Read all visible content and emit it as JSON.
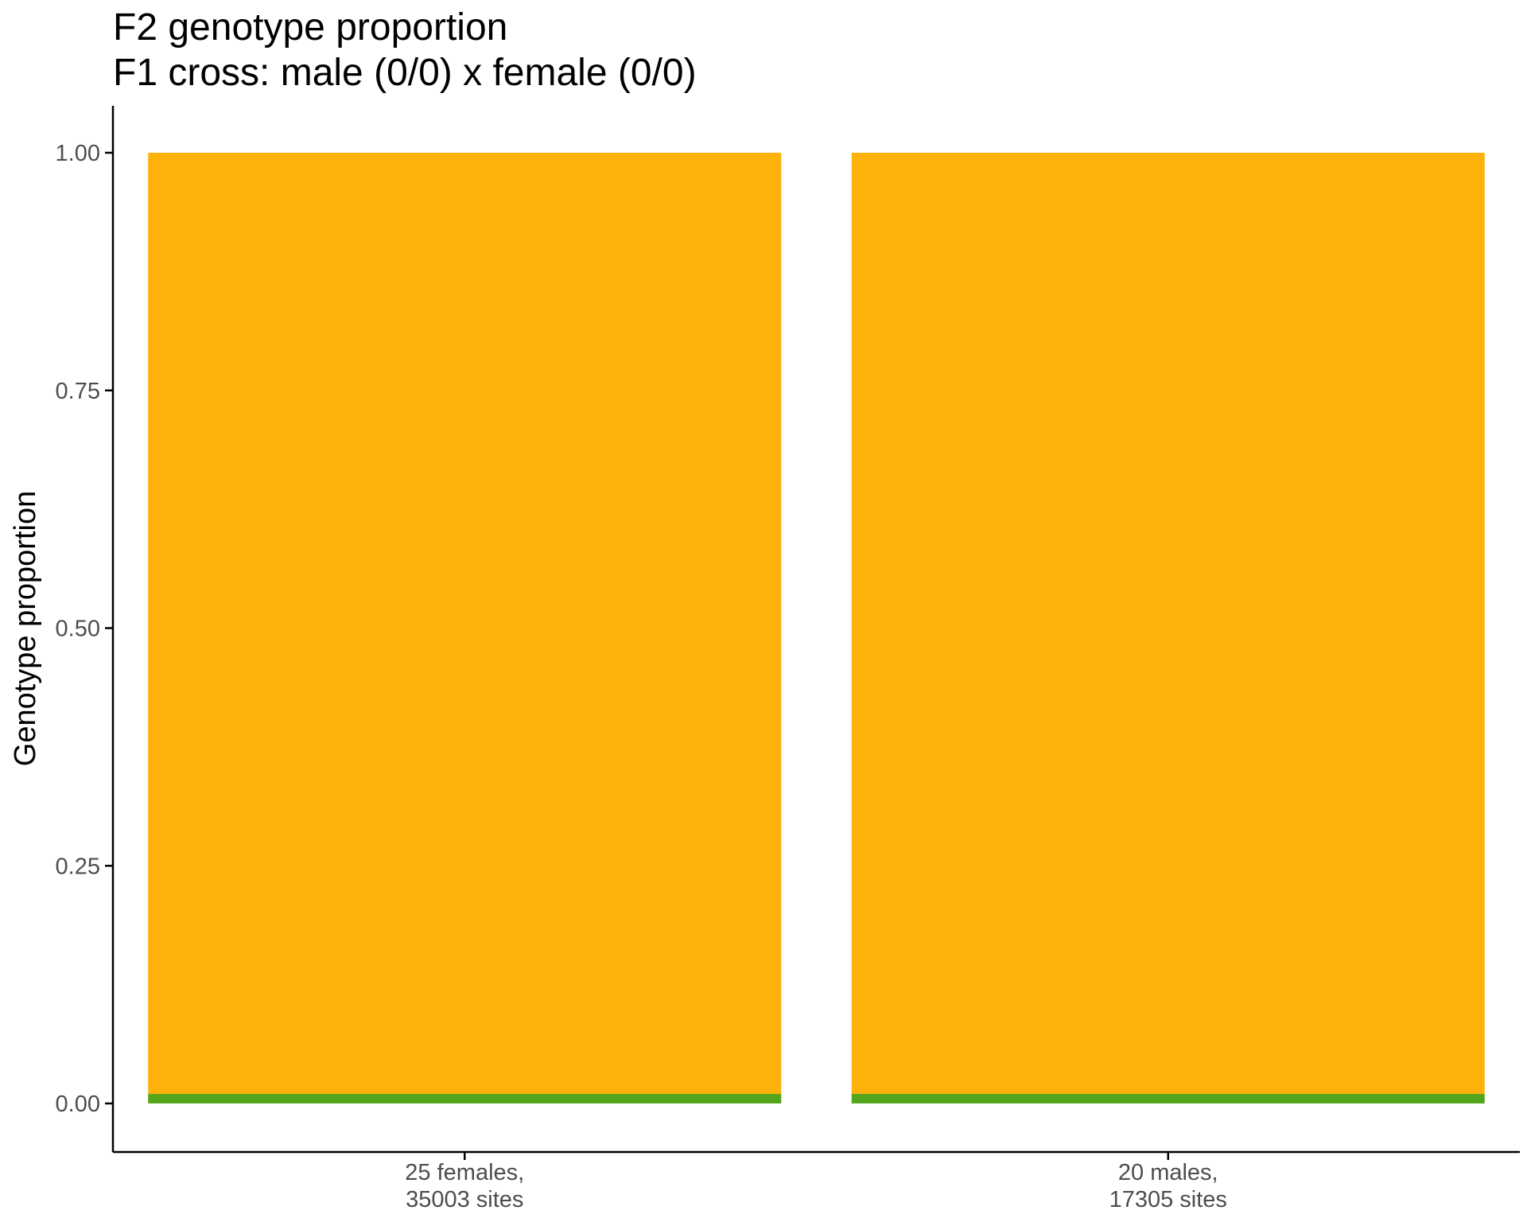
{
  "chart_data": {
    "type": "bar",
    "stacked": true,
    "title": "F2 genotype proportion",
    "subtitle": "F1 cross: male (0/0) x female (0/0)",
    "xlabel": "",
    "ylabel": "Genotype proportion",
    "ylim": [
      0,
      1
    ],
    "yticks": [
      "0.00",
      "0.25",
      "0.50",
      "0.75",
      "1.00"
    ],
    "categories": [
      [
        "25 females,",
        "35003 sites"
      ],
      [
        "20 males,",
        "17305 sites"
      ]
    ],
    "series": [
      {
        "color": "#55a51c",
        "values": [
          0.01,
          0.01
        ]
      },
      {
        "color": "#fdb10b",
        "values": [
          0.99,
          0.99
        ]
      }
    ],
    "grid": false,
    "legend": "none"
  }
}
